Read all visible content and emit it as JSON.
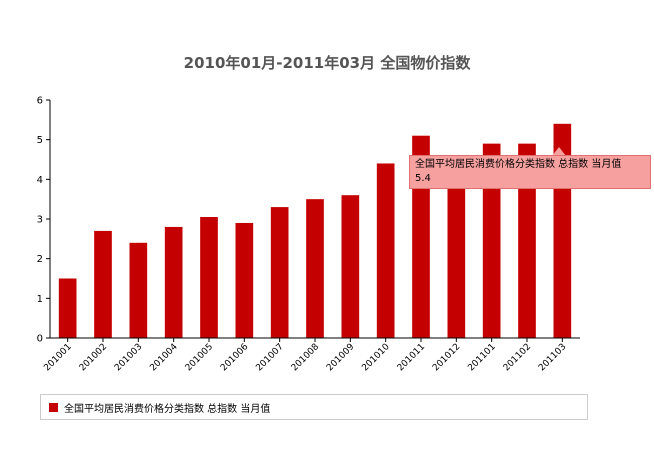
{
  "chart_data": {
    "type": "bar",
    "title": "2010年01月-2011年03月 全国物价指数",
    "categories": [
      "201001",
      "201002",
      "201003",
      "201004",
      "201005",
      "201006",
      "201007",
      "201008",
      "201009",
      "201010",
      "201011",
      "201012",
      "201101",
      "201102",
      "201103"
    ],
    "series": [
      {
        "name": "全国平均居民消费价格分类指数 总指数 当月值",
        "values": [
          1.5,
          2.7,
          2.4,
          2.8,
          3.05,
          2.9,
          3.3,
          3.5,
          3.6,
          4.4,
          5.1,
          4.6,
          4.9,
          4.9,
          5.4
        ]
      }
    ],
    "ylim": [
      0,
      6
    ],
    "yticks": [
      "0",
      "1",
      "2",
      "3",
      "4",
      "5",
      "6"
    ],
    "grid": false,
    "legend": "bottom",
    "color": "#c40000"
  },
  "tooltip": {
    "series_label": "全国平均居民消费价格分类指数 总指数 当月值",
    "value": "5.4"
  }
}
